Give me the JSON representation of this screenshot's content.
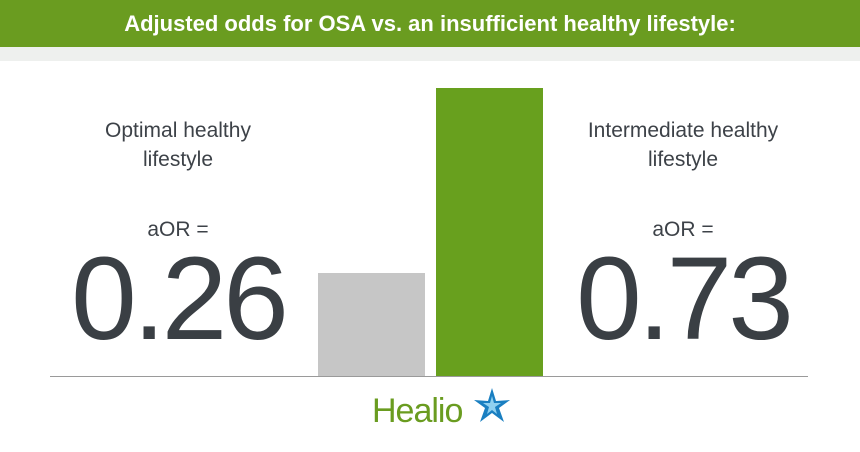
{
  "chart_data": {
    "type": "bar",
    "title": "Adjusted odds for OSA vs. an insufficient healthy lifestyle:",
    "categories": [
      "Optimal healthy lifestyle",
      "Intermediate healthy lifestyle"
    ],
    "values": [
      0.26,
      0.73
    ],
    "annotations": [
      "aOR =",
      "aOR ="
    ],
    "colors": [
      "#c6c6c6",
      "#68a01e"
    ],
    "logo": "Healio"
  }
}
